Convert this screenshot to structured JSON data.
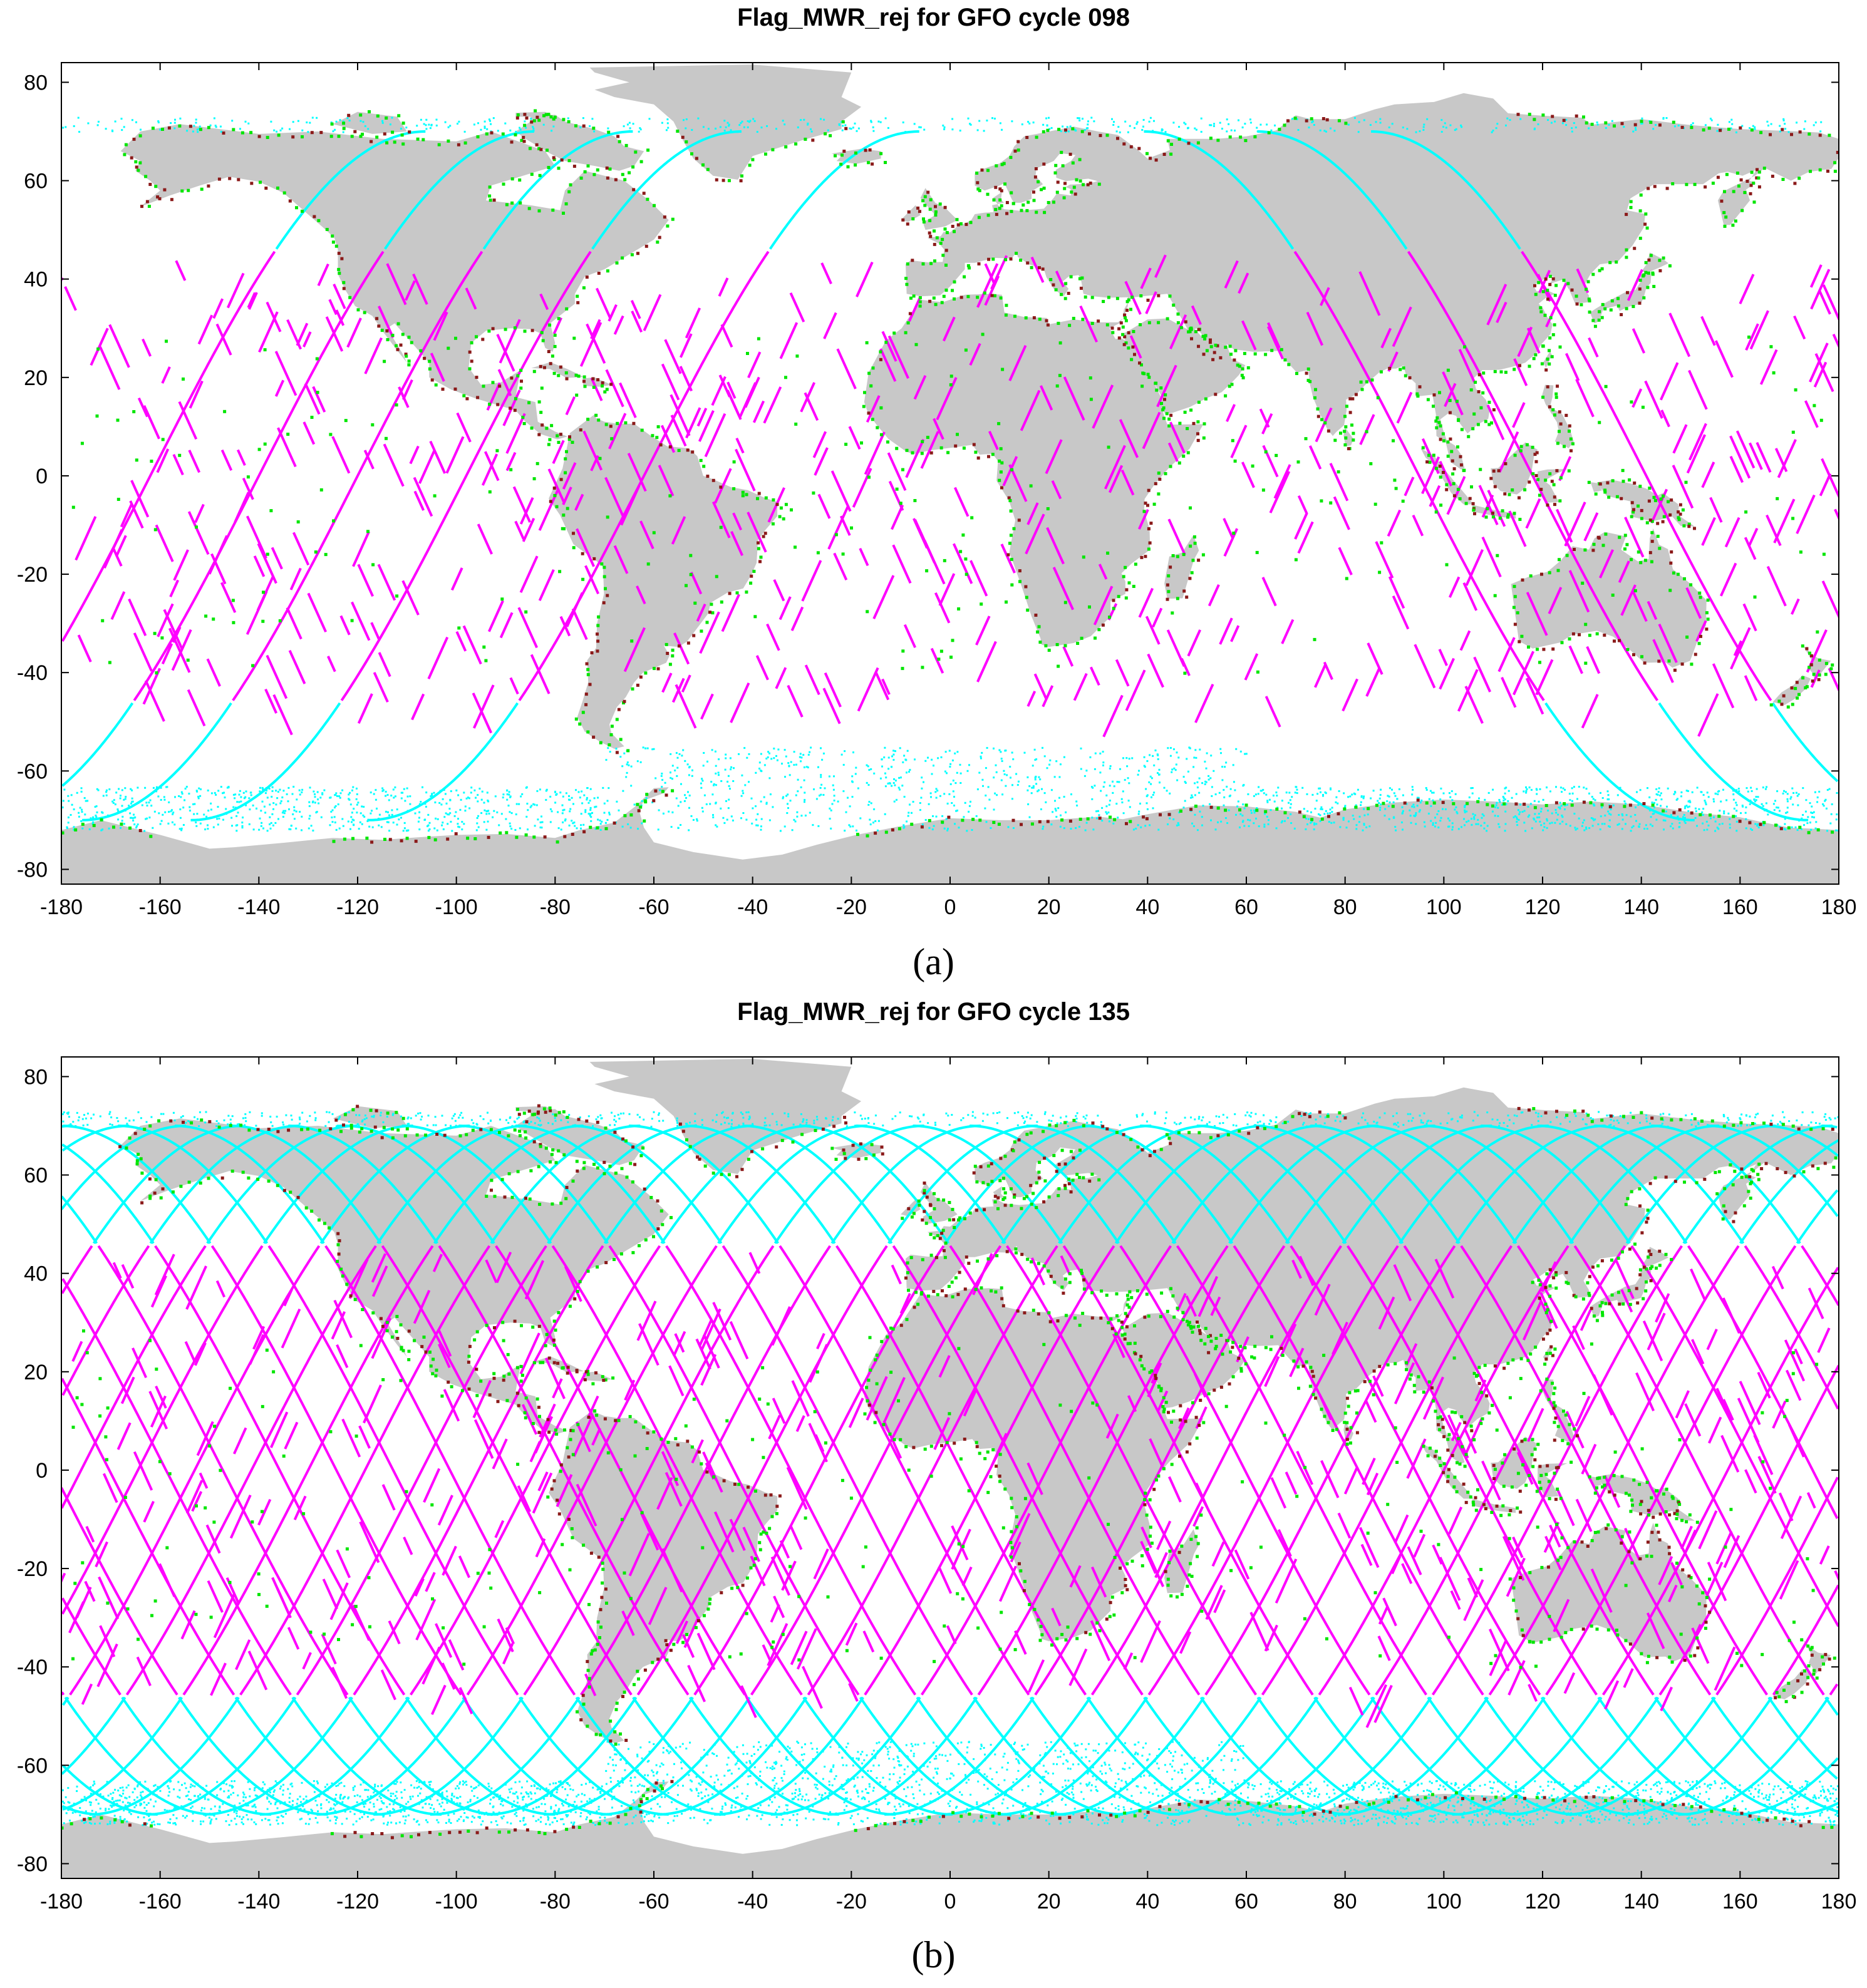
{
  "panels": [
    {
      "id": "a",
      "title": "Flag_MWR_rej for GFO cycle 098",
      "label": "(a)",
      "tracks_mode": "sparse"
    },
    {
      "id": "b",
      "title": "Flag_MWR_rej for GFO cycle 135",
      "label": "(b)",
      "tracks_mode": "dense"
    }
  ],
  "axes": {
    "x_ticks": [
      -180,
      -160,
      -140,
      -120,
      -100,
      -80,
      -60,
      -40,
      -20,
      0,
      20,
      40,
      60,
      80,
      100,
      120,
      140,
      160,
      180
    ],
    "y_ticks": [
      80,
      60,
      40,
      20,
      0,
      -20,
      -40,
      -60,
      -80
    ],
    "xlim": [
      -180,
      180
    ],
    "ylim": [
      -83,
      84
    ]
  },
  "colors": {
    "land": "#c8c8c8",
    "ocean": "#ffffff",
    "rejected_track": "#ff00ff",
    "sea_ice_track": "#00ffff",
    "coastal_flag": "#00e600",
    "other_flag": "#8b1a1a",
    "axis": "#000000"
  }
}
